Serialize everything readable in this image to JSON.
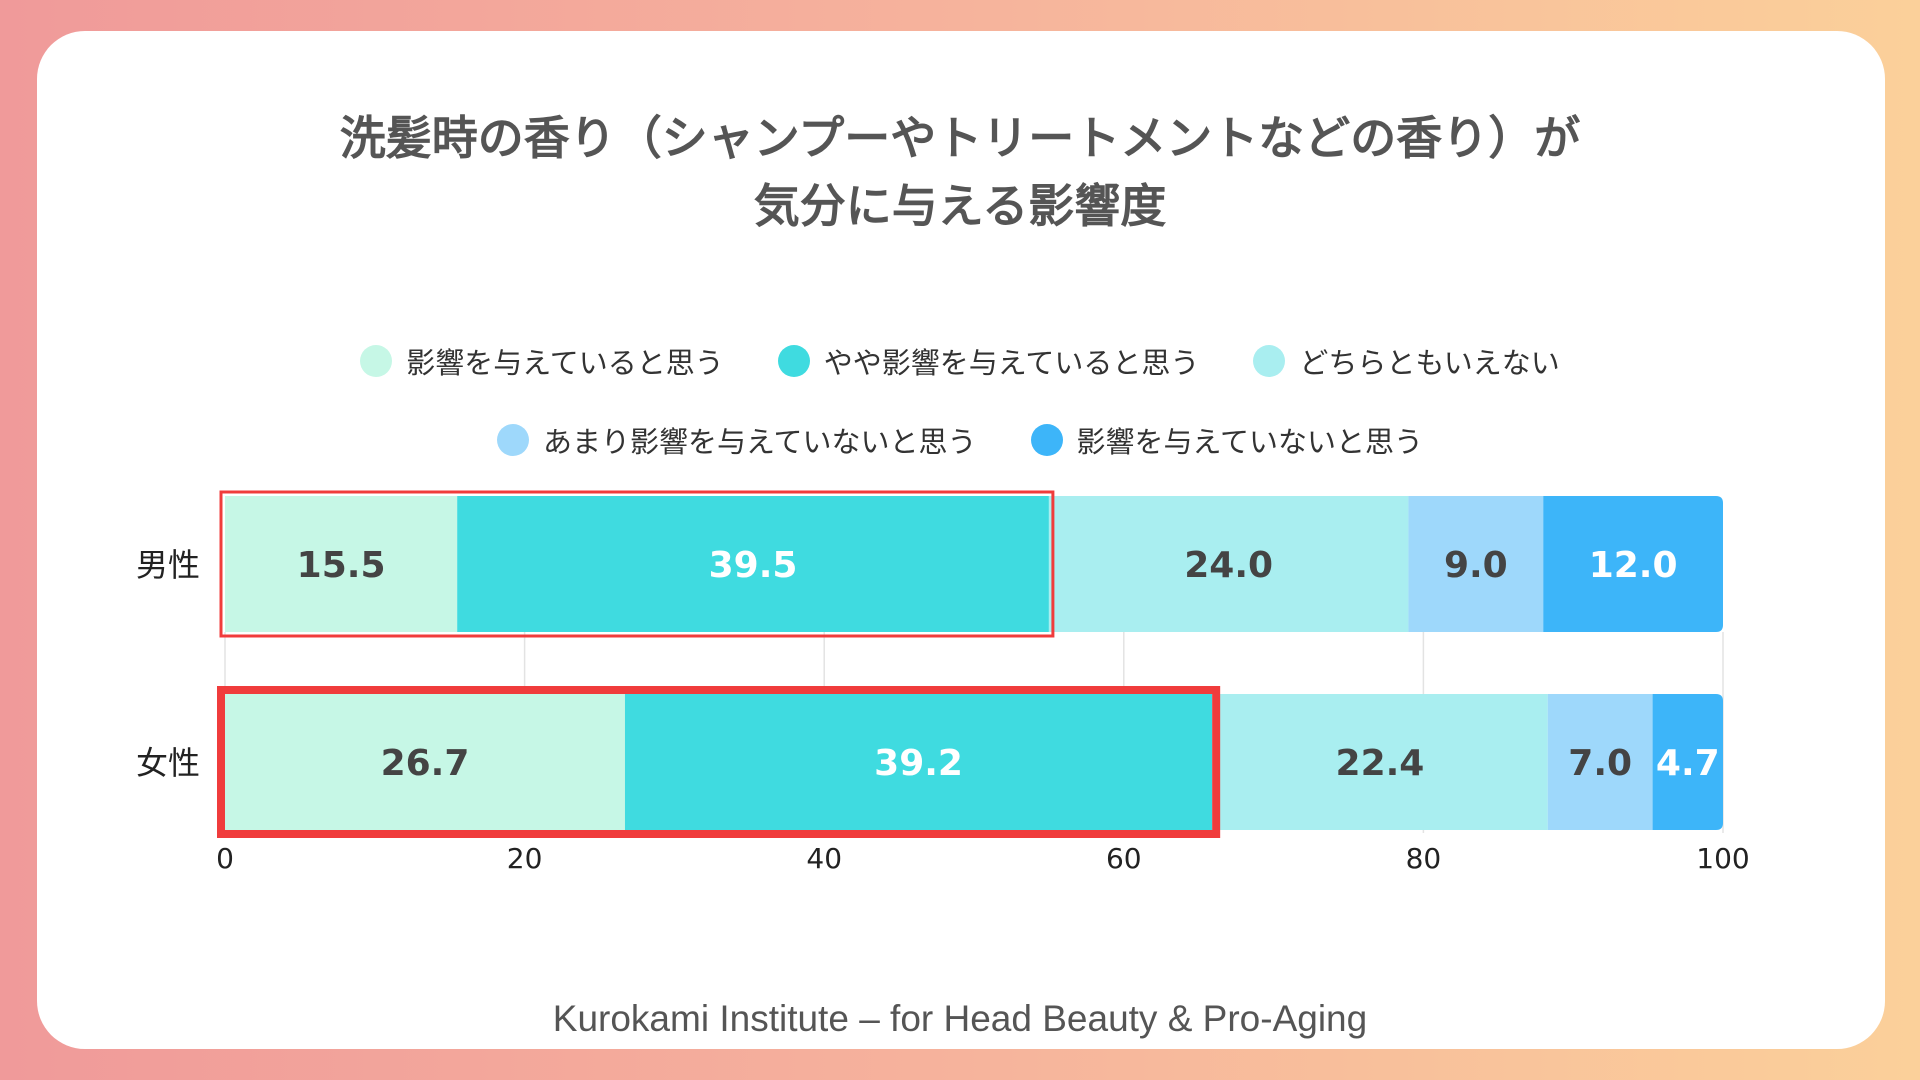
{
  "title_lines": [
    "洗髪時の香り（シャンプーやトリートメントなどの香り）が",
    "気分に与える影響度"
  ],
  "legend_rows": [
    [
      0,
      1,
      2
    ],
    [
      3,
      4
    ]
  ],
  "chart_data": {
    "type": "bar",
    "orientation": "horizontal",
    "stacked": true,
    "categories": [
      "男性",
      "女性"
    ],
    "series": [
      {
        "name": "影響を与えていると思う",
        "values": [
          15.5,
          26.7
        ],
        "color": "#c6f7e6",
        "label_color": "#444444"
      },
      {
        "name": "やや影響を与えていると思う",
        "values": [
          39.5,
          39.2
        ],
        "color": "#3fdbe0",
        "label_color": "#ffffff"
      },
      {
        "name": "どちらともいえない",
        "values": [
          24.0,
          22.4
        ],
        "color": "#a9eef0",
        "label_color": "#444444"
      },
      {
        "name": "あまり影響を与えていないと思う",
        "values": [
          9.0,
          7.0
        ],
        "color": "#9ed8fb",
        "label_color": "#444444"
      },
      {
        "name": "影響を与えていないと思う",
        "values": [
          12.0,
          4.7
        ],
        "color": "#3db5f9",
        "label_color": "#ffffff"
      }
    ],
    "data_labels": [
      [
        "15.5",
        "39.5",
        "24.0",
        "9.0",
        "12.0"
      ],
      [
        "26.7",
        "39.2",
        "22.4",
        "7.0",
        "4.7"
      ]
    ],
    "x_ticks": [
      0,
      20,
      40,
      60,
      80,
      100
    ],
    "xlim": [
      0,
      100
    ],
    "grid": true,
    "legend_position": "top-center",
    "highlight": {
      "series_indices": [
        0,
        1
      ],
      "color": "#f03c3c"
    }
  },
  "footer": "Kurokami Institute – for Head Beauty & Pro-Aging"
}
